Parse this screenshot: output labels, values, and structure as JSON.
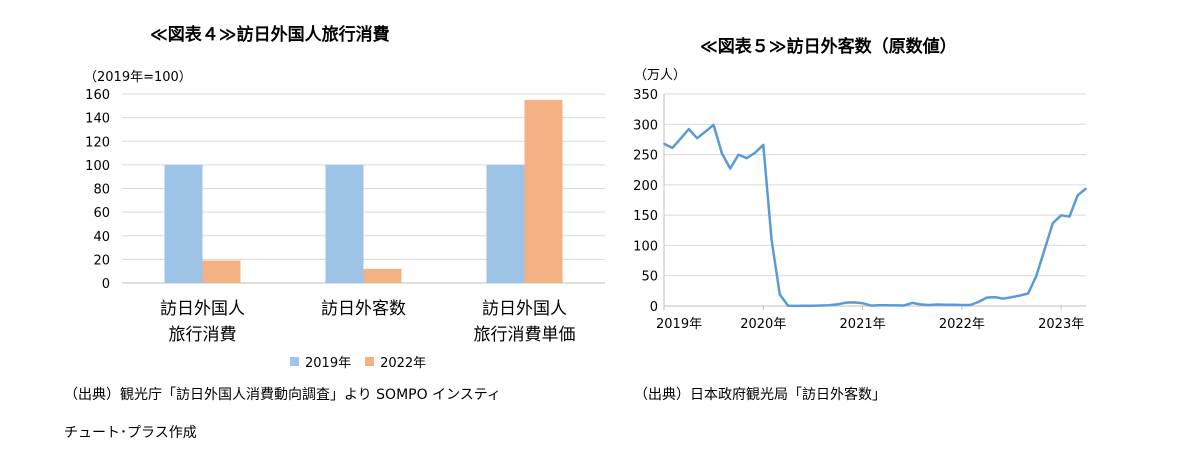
{
  "left": {
    "title": "≪図表４≫訪日外国人旅行消費",
    "unit": "（2019年=100）",
    "source_line1": "（出典）観光庁「訪日外国人消費動向調査」より SOMPO インスティ",
    "source_line2": "チュート･プラス作成"
  },
  "right": {
    "title": "≪図表５≫訪日外客数（原数値）",
    "unit": "（万人）",
    "source": "（出典）日本政府観光局「訪日外客数」"
  },
  "colors": {
    "series2019": "#9dc3e6",
    "series2022": "#f4b183",
    "line": "#5b9bd5",
    "grid": "#d9d9d9",
    "axis": "#bfbfbf"
  },
  "chart_data": [
    {
      "type": "bar",
      "title": "≪図表４≫訪日外国人旅行消費",
      "ylabel": "（2019年=100）",
      "categories": [
        [
          "訪日外国人",
          "旅行消費"
        ],
        [
          "訪日外客数"
        ],
        [
          "訪日外国人",
          "旅行消費単価"
        ]
      ],
      "series": [
        {
          "name": "2019年",
          "values": [
            100,
            100,
            100
          ]
        },
        {
          "name": "2022年",
          "values": [
            19,
            12,
            155
          ]
        }
      ],
      "ylim": [
        0,
        160
      ],
      "yticks": [
        0,
        20,
        40,
        60,
        80,
        100,
        120,
        140,
        160
      ],
      "grid": true,
      "legend": "bottom"
    },
    {
      "type": "line",
      "title": "≪図表５≫訪日外客数（原数値）",
      "ylabel": "（万人）",
      "x_start": "2019-01",
      "x_tick_labels": [
        "2019年",
        "2020年",
        "2021年",
        "2022年",
        "2023年"
      ],
      "ylim": [
        0,
        350
      ],
      "yticks": [
        0,
        50,
        100,
        150,
        200,
        250,
        300,
        350
      ],
      "grid": true,
      "values": [
        268,
        261,
        276,
        292,
        277,
        288,
        299,
        252,
        227,
        250,
        244,
        253,
        266,
        109,
        19,
        0.3,
        0.2,
        0.3,
        0.4,
        0.9,
        1.4,
        2.8,
        5.6,
        5.9,
        4.6,
        0.7,
        1.2,
        1.1,
        1.0,
        0.9,
        5.2,
        2.6,
        1.7,
        2.5,
        2.1,
        2.2,
        1.7,
        1.6,
        6.6,
        13.9,
        14.7,
        12.0,
        14.5,
        17.1,
        20.7,
        49.9,
        93.4,
        137.0,
        149.7,
        147.8,
        182.7,
        194.0
      ]
    }
  ]
}
